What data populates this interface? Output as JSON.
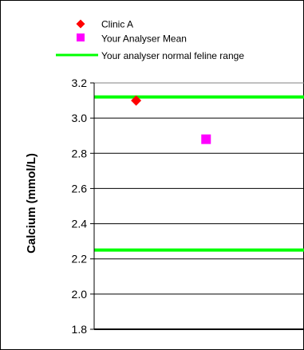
{
  "chart_data": {
    "type": "scatter",
    "title": "",
    "ylabel": "Calcium (mmol/L)",
    "xlabel": "",
    "ylim": [
      1.8,
      3.2
    ],
    "yticks": [
      "3.2",
      "3.0",
      "2.8",
      "2.6",
      "2.4",
      "2.2",
      "2.0",
      "1.8"
    ],
    "grid": true,
    "legend_position": "top",
    "series": [
      {
        "name": "Clinic A",
        "marker": "diamond",
        "color": "#ff0000",
        "points": [
          {
            "x": 1,
            "y": 3.1
          }
        ]
      },
      {
        "name": "Your Analyser Mean",
        "marker": "square",
        "color": "#ff00ff",
        "points": [
          {
            "x": 2,
            "y": 2.88
          }
        ]
      }
    ],
    "reference_lines": [
      {
        "name": "Your analyser normal feline range",
        "color": "#00ff00",
        "upper": 3.12,
        "lower": 2.25
      }
    ]
  }
}
